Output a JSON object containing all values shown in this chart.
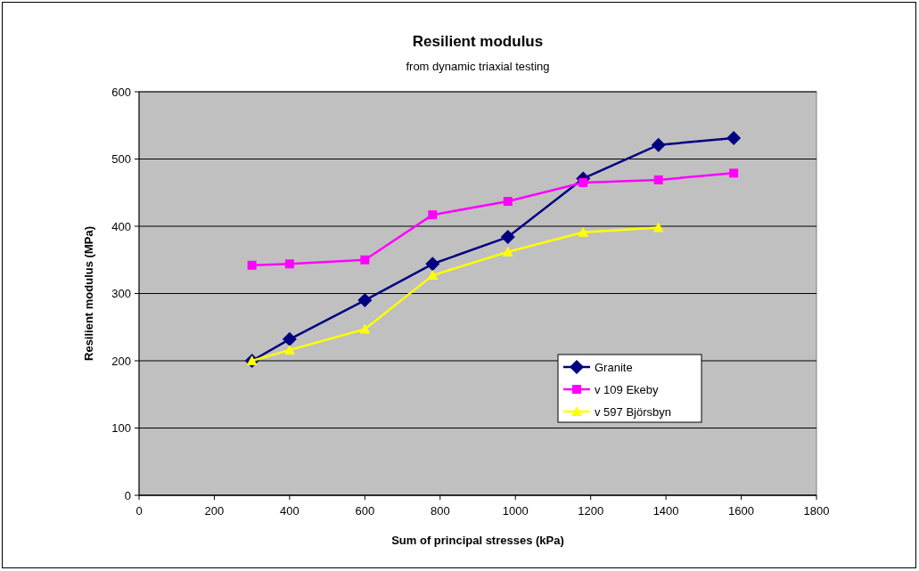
{
  "chart_data": {
    "type": "line",
    "title": "Resilient modulus",
    "subtitle": "from dynamic triaxial testing",
    "xlabel": "Sum of principal stresses (kPa)",
    "ylabel": "Resilient modulus (MPa)",
    "x": [
      300,
      400,
      600,
      780,
      980,
      1180,
      1380,
      1580
    ],
    "series": [
      {
        "name": "Granite",
        "color": "#000080",
        "marker": "diamond",
        "values": [
          200,
          232,
          290,
          344,
          384,
          471,
          521,
          531
        ]
      },
      {
        "name": "v 109 Ekeby",
        "color": "#ff00ff",
        "marker": "square",
        "values": [
          342,
          344,
          350,
          417,
          437,
          465,
          469,
          479
        ]
      },
      {
        "name": "v 597 Björsbyn",
        "color": "#ffff00",
        "marker": "triangle",
        "values": [
          200,
          216,
          247,
          327,
          362,
          391,
          398,
          null
        ]
      }
    ],
    "xlim": [
      0,
      1800
    ],
    "xticks": [
      0,
      200,
      400,
      600,
      800,
      1000,
      1200,
      1400,
      1600,
      1800
    ],
    "ylim": [
      0,
      600
    ],
    "yticks": [
      0,
      100,
      200,
      300,
      400,
      500,
      600
    ],
    "grid": "y",
    "legend": "right",
    "line_style": "solid"
  }
}
